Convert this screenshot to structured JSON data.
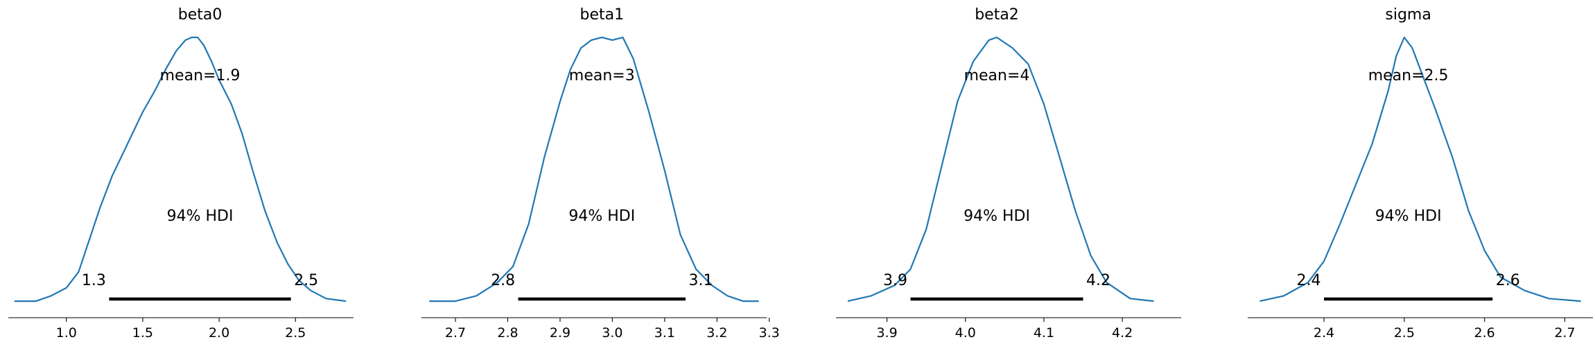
{
  "chart_data": [
    {
      "type": "line",
      "title": "beta0",
      "mean_label": "mean=1.9",
      "hdi_label": "94% HDI",
      "hdi": [
        1.28,
        2.47
      ],
      "hdi_low_label": "1.3",
      "hdi_high_label": "2.5",
      "xlim": [
        0.62,
        2.88
      ],
      "ticks": [
        1.0,
        1.5,
        2.0,
        2.5
      ],
      "tick_labels": [
        "1.0",
        "1.5",
        "2.0",
        "2.5"
      ],
      "x": [
        0.66,
        0.8,
        0.9,
        1.0,
        1.08,
        1.15,
        1.22,
        1.3,
        1.4,
        1.5,
        1.58,
        1.65,
        1.72,
        1.78,
        1.82,
        1.86,
        1.9,
        1.95,
        2.0,
        2.08,
        2.15,
        2.22,
        2.3,
        2.38,
        2.45,
        2.52,
        2.6,
        2.7,
        2.83
      ],
      "y": [
        0.01,
        0.01,
        0.03,
        0.06,
        0.12,
        0.24,
        0.36,
        0.48,
        0.6,
        0.72,
        0.8,
        0.88,
        0.95,
        0.99,
        1.0,
        1.0,
        0.97,
        0.91,
        0.84,
        0.75,
        0.64,
        0.5,
        0.35,
        0.23,
        0.15,
        0.09,
        0.05,
        0.02,
        0.01
      ],
      "color": "#1f77b4"
    },
    {
      "type": "line",
      "title": "beta1",
      "mean_label": "mean=3",
      "hdi_label": "94% HDI",
      "hdi": [
        2.82,
        3.14
      ],
      "hdi_low_label": "2.8",
      "hdi_high_label": "3.1",
      "xlim": [
        2.635,
        3.295
      ],
      "ticks": [
        2.7,
        2.8,
        2.9,
        3.0,
        3.1,
        3.2,
        3.3
      ],
      "tick_labels": [
        "2.7",
        "2.8",
        "2.9",
        "3.0",
        "3.1",
        "3.2",
        "3.3"
      ],
      "x": [
        2.65,
        2.7,
        2.74,
        2.78,
        2.81,
        2.84,
        2.87,
        2.9,
        2.92,
        2.94,
        2.96,
        2.98,
        3.0,
        3.02,
        3.04,
        3.07,
        3.1,
        3.13,
        3.16,
        3.19,
        3.22,
        3.25,
        3.28
      ],
      "y": [
        0.01,
        0.01,
        0.03,
        0.08,
        0.14,
        0.3,
        0.55,
        0.76,
        0.88,
        0.96,
        0.99,
        1.0,
        0.99,
        1.0,
        0.92,
        0.72,
        0.5,
        0.26,
        0.13,
        0.07,
        0.03,
        0.01,
        0.01
      ],
      "color": "#1f77b4"
    },
    {
      "type": "line",
      "title": "beta2",
      "mean_label": "mean=4",
      "hdi_label": "94% HDI",
      "hdi": [
        3.93,
        4.15
      ],
      "hdi_low_label": "3.9",
      "hdi_high_label": "4.2",
      "xlim": [
        3.835,
        4.275
      ],
      "ticks": [
        3.9,
        4.0,
        4.1,
        4.2
      ],
      "tick_labels": [
        "3.9",
        "4.0",
        "4.1",
        "4.2"
      ],
      "x": [
        3.85,
        3.88,
        3.91,
        3.93,
        3.95,
        3.97,
        3.99,
        4.01,
        4.03,
        4.04,
        4.06,
        4.08,
        4.1,
        4.12,
        4.14,
        4.16,
        4.18,
        4.21,
        4.24
      ],
      "y": [
        0.01,
        0.03,
        0.07,
        0.13,
        0.28,
        0.52,
        0.76,
        0.91,
        0.99,
        1.0,
        0.96,
        0.9,
        0.75,
        0.55,
        0.35,
        0.18,
        0.08,
        0.02,
        0.01
      ],
      "color": "#1f77b4"
    },
    {
      "type": "line",
      "title": "sigma",
      "mean_label": "mean=2.5",
      "hdi_label": "94% HDI",
      "hdi": [
        2.4,
        2.61
      ],
      "hdi_low_label": "2.4",
      "hdi_high_label": "2.6",
      "xlim": [
        2.305,
        2.735
      ],
      "ticks": [
        2.4,
        2.5,
        2.6,
        2.7
      ],
      "tick_labels": [
        "2.4",
        "2.5",
        "2.6",
        "2.7"
      ],
      "x": [
        2.32,
        2.35,
        2.38,
        2.4,
        2.42,
        2.44,
        2.46,
        2.48,
        2.49,
        2.5,
        2.51,
        2.52,
        2.54,
        2.56,
        2.58,
        2.6,
        2.62,
        2.65,
        2.68,
        2.72
      ],
      "y": [
        0.01,
        0.03,
        0.08,
        0.16,
        0.3,
        0.45,
        0.6,
        0.8,
        0.93,
        1.0,
        0.96,
        0.88,
        0.72,
        0.55,
        0.35,
        0.2,
        0.1,
        0.05,
        0.02,
        0.01
      ],
      "color": "#1f77b4"
    }
  ]
}
